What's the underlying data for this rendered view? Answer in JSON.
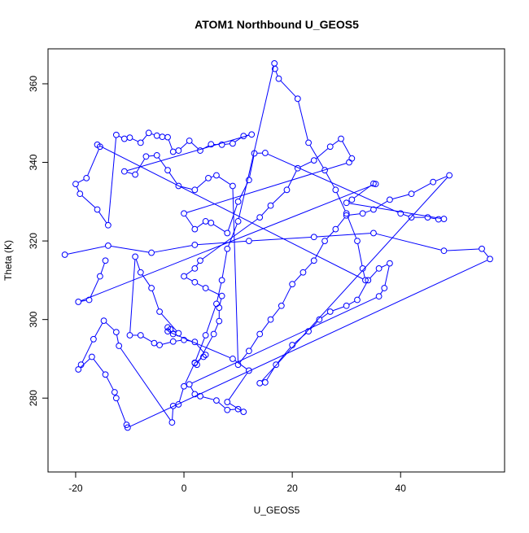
{
  "chart_data": {
    "type": "line",
    "title": "ATOM1 Northbound U_GEOS5",
    "xlabel": "U_GEOS5",
    "ylabel": "Theta (K)",
    "xlim": [
      -25.1,
      59.2
    ],
    "ylim": [
      261.2,
      368.9
    ],
    "xticks": [
      -20,
      0,
      20,
      40
    ],
    "yticks": [
      280,
      300,
      320,
      340,
      360
    ],
    "grid": false,
    "markers": "open-circle",
    "color": "#0000ff",
    "series": [
      {
        "points": [
          [
            -22,
            316.5
          ],
          [
            -14,
            318.8
          ],
          [
            -6,
            317
          ],
          [
            2,
            319
          ],
          [
            12,
            320
          ],
          [
            24,
            321
          ],
          [
            35,
            322
          ],
          [
            48,
            317.5
          ],
          [
            55,
            318
          ],
          [
            56.5,
            315.4
          ],
          [
            -10.4,
            272.5
          ],
          [
            -10.6,
            273.2
          ],
          [
            -12.5,
            280
          ],
          [
            -12.8,
            281.5
          ],
          [
            -14.5,
            286
          ],
          [
            -17,
            290.5
          ],
          [
            -19.5,
            287.3
          ],
          [
            -19,
            288.5
          ],
          [
            -16.7,
            295
          ],
          [
            -14.8,
            299.7
          ],
          [
            -12.5,
            296.8
          ],
          [
            -12,
            293.3
          ],
          [
            -2.2,
            273.8
          ],
          [
            -2,
            278
          ],
          [
            -1,
            278.4
          ],
          [
            0,
            283
          ],
          [
            2,
            289
          ],
          [
            4,
            296
          ],
          [
            6,
            304
          ],
          [
            7,
            310
          ],
          [
            8,
            318
          ],
          [
            10,
            325
          ],
          [
            16.7,
            365.2
          ],
          [
            16.8,
            363.8
          ],
          [
            17.5,
            361.3
          ],
          [
            21,
            356.2
          ],
          [
            23,
            345
          ],
          [
            26,
            338
          ],
          [
            28,
            333
          ],
          [
            30,
            327
          ],
          [
            32,
            320
          ],
          [
            33,
            313
          ],
          [
            33.5,
            310
          ],
          [
            -16,
            344.5
          ],
          [
            -15.5,
            344
          ],
          [
            -18,
            336
          ],
          [
            -20,
            334.5
          ],
          [
            -19.2,
            332
          ],
          [
            -16,
            328
          ],
          [
            -14,
            324
          ],
          [
            -12.5,
            347
          ],
          [
            -11,
            346
          ],
          [
            -10,
            346.3
          ],
          [
            -8,
            345
          ],
          [
            -6.5,
            347.5
          ],
          [
            -5,
            346.8
          ],
          [
            -4,
            346.5
          ],
          [
            -3,
            346.4
          ],
          [
            -2,
            342.7
          ],
          [
            -1,
            343
          ],
          [
            1,
            345.5
          ],
          [
            3,
            343
          ],
          [
            5,
            344.6
          ],
          [
            7,
            344.5
          ],
          [
            9,
            344.8
          ],
          [
            11,
            346.7
          ],
          [
            12.5,
            347.1
          ],
          [
            -11,
            337.7
          ],
          [
            -9,
            336.9
          ],
          [
            -7,
            341.5
          ],
          [
            -5,
            341.8
          ],
          [
            -3,
            338
          ],
          [
            -1,
            334
          ],
          [
            2,
            333
          ],
          [
            4.5,
            336
          ],
          [
            6,
            336.7
          ],
          [
            9,
            334
          ],
          [
            10,
            288.5
          ],
          [
            12,
            292
          ],
          [
            14,
            296.3
          ],
          [
            16,
            300
          ],
          [
            18,
            303.5
          ],
          [
            20,
            309
          ],
          [
            22,
            312
          ],
          [
            24,
            315
          ],
          [
            26,
            320
          ],
          [
            28,
            323
          ],
          [
            30,
            326.5
          ],
          [
            33,
            327
          ],
          [
            35,
            328
          ],
          [
            38,
            330.5
          ],
          [
            42,
            332
          ],
          [
            46,
            335
          ],
          [
            49,
            336.7
          ],
          [
            14,
            283.8
          ],
          [
            15,
            284
          ],
          [
            17,
            288.5
          ],
          [
            20,
            293.5
          ],
          [
            23,
            297
          ],
          [
            25,
            300
          ],
          [
            27,
            302
          ],
          [
            30,
            303.5
          ],
          [
            32,
            305
          ],
          [
            34,
            310
          ],
          [
            36,
            313
          ],
          [
            38,
            314.3
          ],
          [
            37,
            308
          ],
          [
            36,
            305.9
          ],
          [
            1,
            283.5
          ],
          [
            2,
            281
          ],
          [
            3,
            280.5
          ],
          [
            6,
            279.4
          ],
          [
            8,
            277
          ],
          [
            10,
            277.2
          ],
          [
            11,
            276.5
          ],
          [
            8,
            279
          ],
          [
            12,
            287
          ],
          [
            9,
            290
          ],
          [
            -3,
            297
          ],
          [
            -3,
            298
          ],
          [
            -2,
            296.3
          ],
          [
            -2.5,
            297.5
          ],
          [
            -1,
            296.5
          ],
          [
            -4.5,
            302
          ],
          [
            -6,
            308
          ],
          [
            -8,
            312
          ],
          [
            -9,
            316
          ],
          [
            -10,
            296
          ],
          [
            -8,
            296
          ],
          [
            -5.5,
            294
          ],
          [
            -4.5,
            293.5
          ],
          [
            -2,
            294.4
          ],
          [
            0,
            294.8
          ],
          [
            2,
            294.3
          ],
          [
            4,
            291
          ],
          [
            3.6,
            290.5
          ],
          [
            2,
            288.9
          ],
          [
            2.4,
            288.5
          ],
          [
            5.5,
            296.3
          ],
          [
            6.5,
            299.6
          ],
          [
            6.5,
            303
          ],
          [
            7,
            306
          ],
          [
            4,
            308
          ],
          [
            2,
            309.5
          ],
          [
            0,
            311
          ],
          [
            2,
            313
          ],
          [
            3,
            315
          ],
          [
            14,
            326
          ],
          [
            16,
            329
          ],
          [
            19,
            333
          ],
          [
            21,
            338.5
          ],
          [
            24,
            340.5
          ],
          [
            27,
            344
          ],
          [
            29,
            346
          ],
          [
            31,
            341
          ],
          [
            30.5,
            340
          ],
          [
            0,
            327
          ],
          [
            2,
            323
          ],
          [
            4,
            325
          ],
          [
            5,
            324.6
          ],
          [
            8,
            322
          ],
          [
            10,
            330
          ],
          [
            12,
            335.5
          ],
          [
            13,
            342.3
          ],
          [
            15,
            342.4
          ],
          [
            40,
            327
          ],
          [
            42,
            326
          ],
          [
            45,
            326
          ],
          [
            47,
            325.5
          ],
          [
            48,
            325.6
          ],
          [
            30,
            329.7
          ],
          [
            31,
            330.5
          ],
          [
            35,
            334.6
          ],
          [
            35.4,
            334.5
          ],
          [
            -19.5,
            304.5
          ],
          [
            -17.5,
            305
          ],
          [
            -15.5,
            311
          ],
          [
            -14.5,
            315
          ]
        ]
      }
    ]
  }
}
